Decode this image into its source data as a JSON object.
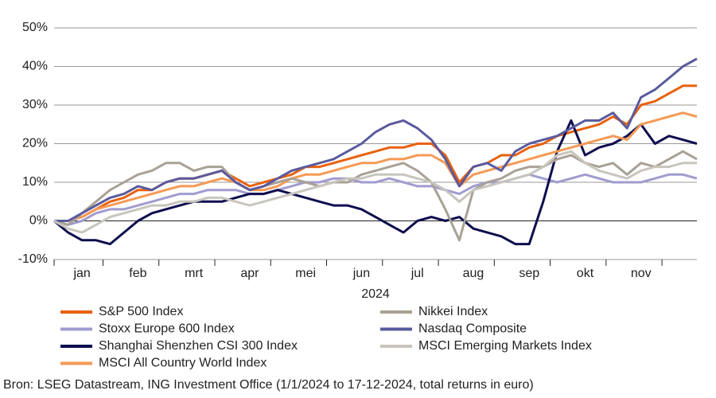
{
  "chart_data": {
    "type": "line",
    "xlabel": "2024",
    "source": "Bron: LSEG Datastream, ING Investment Office (1/1/2024 to 17-12-2024, total returns in euro)",
    "categories": [
      null,
      null,
      "jan",
      null,
      null,
      null,
      "feb",
      null,
      null,
      null,
      "mrt",
      null,
      null,
      null,
      "apr",
      null,
      null,
      null,
      "mei",
      null,
      null,
      null,
      "jun",
      null,
      null,
      null,
      "jul",
      null,
      null,
      null,
      "aug",
      null,
      null,
      null,
      "sep",
      null,
      null,
      null,
      "okt",
      null,
      null,
      null,
      "nov",
      null,
      null,
      null,
      null
    ],
    "ylim": [
      -10,
      50
    ],
    "yticks": [
      {
        "value": -10,
        "label": "-10%"
      },
      {
        "value": 0,
        "label": "0%"
      },
      {
        "value": 10,
        "label": "10%"
      },
      {
        "value": 20,
        "label": "20%"
      },
      {
        "value": 30,
        "label": "30%"
      },
      {
        "value": 40,
        "label": "40%"
      },
      {
        "value": 50,
        "label": "50%"
      }
    ],
    "grid": true,
    "series": [
      {
        "name": "S&P 500 Index",
        "color": "#e8620f",
        "values": [
          0,
          0,
          1,
          3,
          5,
          6,
          8,
          8,
          10,
          11,
          11,
          12,
          13,
          11,
          9,
          10,
          11,
          12,
          14,
          14,
          15,
          16,
          17,
          18,
          19,
          19,
          20,
          20,
          17,
          10,
          14,
          15,
          17,
          17,
          19,
          20,
          22,
          23,
          24,
          25,
          27,
          25,
          30,
          31,
          33,
          35,
          35
        ]
      },
      {
        "name": "Stoxx Europe 600 Index",
        "color": "#a09cd0",
        "values": [
          0,
          -1,
          0,
          2,
          3,
          3,
          4,
          5,
          6,
          7,
          7,
          8,
          8,
          8,
          7,
          7,
          8,
          9,
          10,
          10,
          11,
          11,
          10,
          10,
          11,
          10,
          9,
          9,
          8,
          7,
          9,
          10,
          10,
          11,
          12,
          11,
          10,
          11,
          12,
          11,
          10,
          10,
          10,
          11,
          12,
          12,
          11
        ]
      },
      {
        "name": "Shanghai Shenzhen CSI 300 Index",
        "color": "#0e0e4f",
        "values": [
          0,
          -3,
          -5,
          -5,
          -6,
          -3,
          0,
          2,
          3,
          4,
          5,
          5,
          5,
          6,
          7,
          7,
          8,
          7,
          6,
          5,
          4,
          4,
          3,
          1,
          -1,
          -3,
          0,
          1,
          0,
          1,
          -2,
          -3,
          -4,
          -6,
          -6,
          5,
          18,
          26,
          17,
          19,
          20,
          22,
          25,
          20,
          22,
          21,
          20
        ]
      },
      {
        "name": "MSCI All Country World Index",
        "color": "#f59a55",
        "values": [
          0,
          0,
          1,
          3,
          4,
          5,
          6,
          7,
          8,
          9,
          9,
          10,
          11,
          10,
          8,
          8,
          9,
          11,
          12,
          12,
          13,
          14,
          15,
          15,
          16,
          16,
          17,
          17,
          15,
          9,
          12,
          13,
          14,
          15,
          16,
          17,
          18,
          19,
          20,
          21,
          22,
          21,
          25,
          26,
          27,
          28,
          27
        ]
      },
      {
        "name": "Nikkei Index",
        "color": "#a8a195",
        "values": [
          0,
          -1,
          2,
          5,
          8,
          10,
          12,
          13,
          15,
          15,
          13,
          14,
          14,
          10,
          8,
          9,
          10,
          11,
          10,
          9,
          10,
          10,
          12,
          13,
          14,
          15,
          13,
          10,
          3,
          -5,
          8,
          10,
          11,
          13,
          14,
          14,
          16,
          17,
          15,
          14,
          15,
          12,
          15,
          14,
          16,
          18,
          16
        ]
      },
      {
        "name": "Nasdaq Composite",
        "color": "#5a5a9e",
        "values": [
          0,
          0,
          2,
          4,
          6,
          7,
          9,
          8,
          10,
          11,
          11,
          12,
          13,
          10,
          8,
          9,
          11,
          13,
          14,
          15,
          16,
          18,
          20,
          23,
          25,
          26,
          24,
          21,
          16,
          9,
          14,
          15,
          13,
          18,
          20,
          21,
          22,
          24,
          26,
          26,
          28,
          24,
          32,
          34,
          37,
          40,
          42
        ]
      },
      {
        "name": "MSCI Emerging Markets Index",
        "color": "#c8c5bd",
        "values": [
          0,
          -2,
          -3,
          -1,
          1,
          2,
          3,
          4,
          4,
          5,
          5,
          6,
          6,
          5,
          4,
          5,
          6,
          7,
          8,
          9,
          10,
          11,
          11,
          12,
          12,
          12,
          11,
          10,
          8,
          5,
          8,
          9,
          10,
          11,
          12,
          14,
          17,
          18,
          15,
          13,
          12,
          11,
          13,
          14,
          14,
          15,
          15
        ]
      }
    ]
  }
}
